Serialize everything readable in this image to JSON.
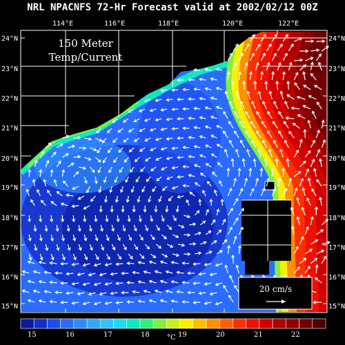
{
  "title": "NRL NPACNFS 72-Hr Forecast valid at 2002/02/12 00Z",
  "panel_label_line1": "150 Meter",
  "panel_label_line2": "Temp/Current",
  "lon_labels": [
    "114°E",
    "116°E",
    "118°E",
    "120°E",
    "122°E"
  ],
  "lat_labels": [
    "24°N",
    "23°N",
    "22°N",
    "21°N",
    "20°N",
    "19°N",
    "18°N",
    "17°N",
    "16°N",
    "15°N"
  ],
  "vector_reference": "20 cm/s",
  "colorbar": {
    "labels": [
      "15",
      "16",
      "17",
      "18",
      "19",
      "20",
      "21",
      "22"
    ],
    "unit": "°C",
    "colors": [
      "#0a1a9a",
      "#1430c8",
      "#1e4cf0",
      "#2a6cff",
      "#2f8cff",
      "#30a8ff",
      "#30c4ff",
      "#20dcf0",
      "#10e8c0",
      "#30f080",
      "#80f040",
      "#c8f020",
      "#f8f000",
      "#ffc000",
      "#ff9000",
      "#ff6000",
      "#ff3000",
      "#f01000",
      "#d00000",
      "#b00000",
      "#900000",
      "#700000",
      "#500000"
    ]
  },
  "colors": {
    "background": "#000000",
    "land": "#000000",
    "vectors": "#ffffff"
  }
}
